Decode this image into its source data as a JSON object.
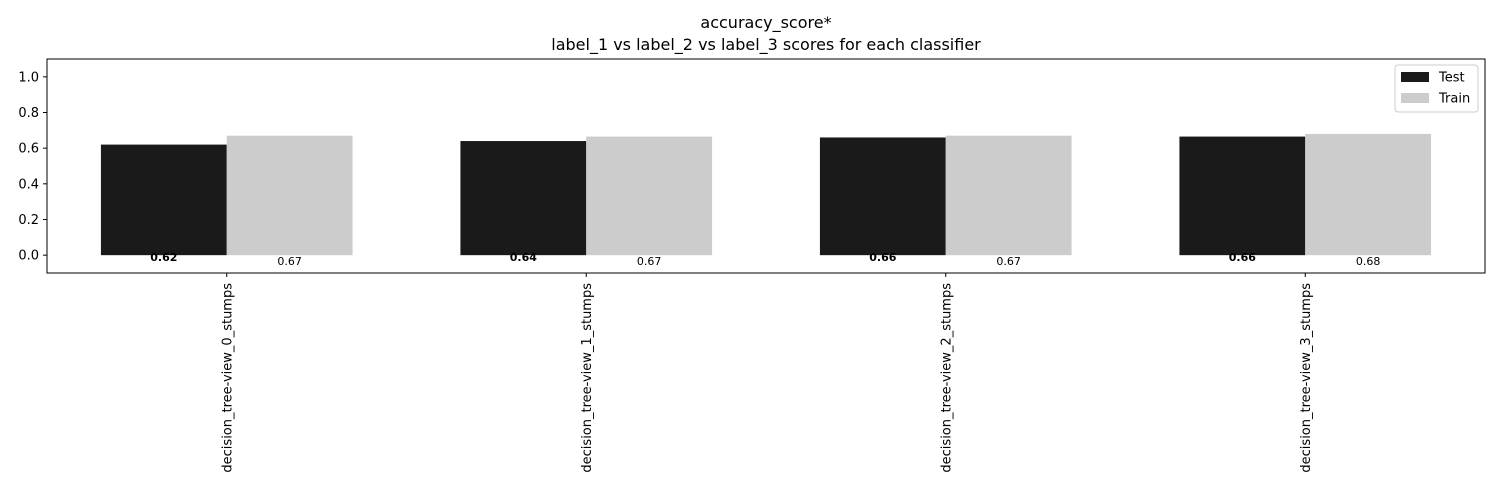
{
  "chart_data": {
    "type": "bar",
    "title": "accuracy_score*",
    "subtitle": "label_1 vs label_2 vs label_3 scores for each classifier",
    "xlabel": "",
    "ylabel": "",
    "categories": [
      "decision_tree-view_0_stumps",
      "decision_tree-view_1_stumps",
      "decision_tree-view_2_stumps",
      "decision_tree-view_3_stumps"
    ],
    "series": [
      {
        "name": "Test",
        "values": [
          0.62,
          0.64,
          0.66,
          0.665
        ],
        "value_labels": [
          "0.62",
          "0.64",
          "0.66",
          "0.66"
        ],
        "color": "#1a1a1a",
        "label_weight": "bold"
      },
      {
        "name": "Train",
        "values": [
          0.67,
          0.665,
          0.67,
          0.68
        ],
        "value_labels": [
          "0.67",
          "0.67",
          "0.67",
          "0.68"
        ],
        "color": "#cccccc",
        "label_weight": "normal"
      }
    ],
    "ylim": [
      -0.1,
      1.1
    ],
    "yticks": [
      0.0,
      0.2,
      0.4,
      0.6,
      0.8,
      1.0
    ],
    "ytick_labels": [
      "0.0",
      "0.2",
      "0.4",
      "0.6",
      "0.8",
      "1.0"
    ],
    "grid": false,
    "legend_position": "top-right"
  }
}
